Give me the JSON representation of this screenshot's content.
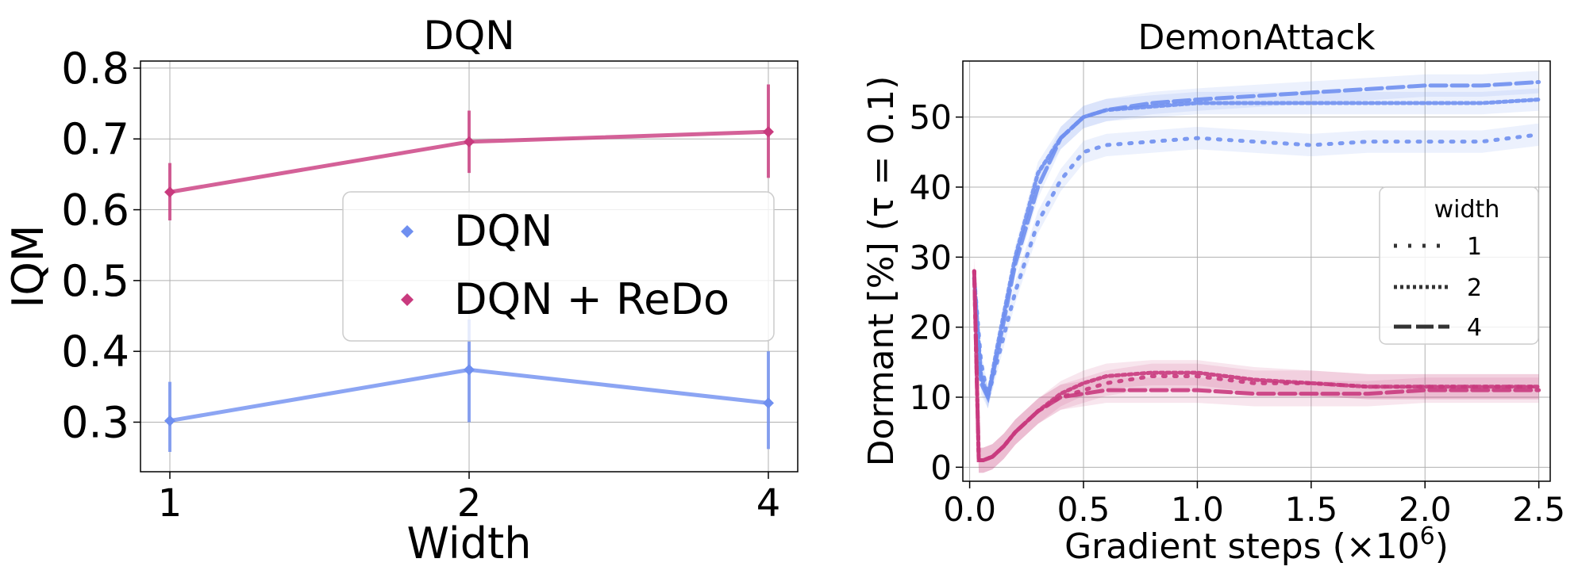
{
  "colors": {
    "dqn": "#6f8ff0",
    "redo": "#c93a7e"
  },
  "chart_data": [
    {
      "type": "line",
      "title": "DQN",
      "xlabel": "Width",
      "ylabel": "IQM",
      "categories": [
        "1",
        "2",
        "4"
      ],
      "ylim": [
        0.23,
        0.81
      ],
      "yticks": [
        "0.3",
        "0.4",
        "0.5",
        "0.6",
        "0.7",
        "0.8"
      ],
      "grid": true,
      "legend_position": "center-right",
      "series": [
        {
          "name": "DQN",
          "color": "#6f8ff0",
          "values": [
            0.302,
            0.374,
            0.327
          ],
          "err_low": [
            0.258,
            0.3,
            0.262
          ],
          "err_high": [
            0.357,
            0.445,
            0.4
          ]
        },
        {
          "name": "DQN + ReDo",
          "color": "#c93a7e",
          "values": [
            0.625,
            0.696,
            0.71
          ],
          "err_low": [
            0.585,
            0.652,
            0.645
          ],
          "err_high": [
            0.666,
            0.74,
            0.777
          ]
        }
      ]
    },
    {
      "type": "line",
      "title": "DemonAttack",
      "xlabel": "Gradient steps (×10",
      "xlabel_exponent": "6",
      "xlabel_suffix": ")",
      "ylabel": "Dormant [%] (τ = 0.1)",
      "xlim": [
        -0.03,
        2.55
      ],
      "ylim": [
        -2,
        58
      ],
      "xticks": [
        "0.0",
        "0.5",
        "1.0",
        "1.5",
        "2.0",
        "2.5"
      ],
      "yticks": [
        "0",
        "10",
        "20",
        "30",
        "40",
        "50"
      ],
      "grid": true,
      "legend_position": "center-right",
      "legend_title": "width",
      "legend_entries": [
        {
          "label": "1",
          "style": "dotted"
        },
        {
          "label": "2",
          "style": "fine-dotted"
        },
        {
          "label": "4",
          "style": "dashed"
        }
      ],
      "series": [
        {
          "group": "DQN",
          "width": "1",
          "color": "#6f8ff0",
          "x": [
            0.02,
            0.05,
            0.08,
            0.12,
            0.2,
            0.3,
            0.4,
            0.5,
            0.6,
            0.8,
            1.0,
            1.25,
            1.5,
            1.75,
            2.0,
            2.25,
            2.5
          ],
          "y": [
            27,
            15,
            10,
            15,
            25,
            35,
            41,
            45,
            46,
            46.5,
            47,
            46.5,
            46,
            46.5,
            46.5,
            46.5,
            47.5
          ]
        },
        {
          "group": "DQN",
          "width": "2",
          "color": "#6f8ff0",
          "x": [
            0.02,
            0.05,
            0.08,
            0.12,
            0.2,
            0.3,
            0.4,
            0.5,
            0.6,
            0.8,
            1.0,
            1.25,
            1.5,
            1.75,
            2.0,
            2.25,
            2.5
          ],
          "y": [
            27,
            13,
            10,
            17,
            30,
            42,
            47,
            50,
            51,
            51.5,
            52,
            52,
            52,
            52,
            52,
            52,
            52.5
          ]
        },
        {
          "group": "DQN",
          "width": "4",
          "color": "#6f8ff0",
          "x": [
            0.02,
            0.05,
            0.08,
            0.12,
            0.2,
            0.3,
            0.4,
            0.5,
            0.6,
            0.8,
            1.0,
            1.25,
            1.5,
            1.75,
            2.0,
            2.25,
            2.5
          ],
          "y": [
            27,
            12,
            10,
            16,
            29,
            40,
            47,
            50,
            51,
            52,
            52.5,
            53,
            53.5,
            54,
            54.5,
            54.5,
            55
          ]
        },
        {
          "group": "DQN + ReDo",
          "width": "1",
          "color": "#c93a7e",
          "x": [
            0.02,
            0.04,
            0.06,
            0.1,
            0.15,
            0.2,
            0.3,
            0.4,
            0.5,
            0.6,
            0.8,
            1.0,
            1.25,
            1.5,
            1.75,
            2.0,
            2.25,
            2.5
          ],
          "y": [
            28,
            1,
            1,
            1.5,
            3,
            5,
            8,
            10,
            11,
            12,
            13,
            13,
            12,
            12,
            11.5,
            11.5,
            11.5,
            11.5
          ]
        },
        {
          "group": "DQN + ReDo",
          "width": "2",
          "color": "#c93a7e",
          "x": [
            0.02,
            0.04,
            0.06,
            0.1,
            0.15,
            0.2,
            0.3,
            0.4,
            0.5,
            0.6,
            0.8,
            1.0,
            1.25,
            1.5,
            1.75,
            2.0,
            2.25,
            2.5
          ],
          "y": [
            28,
            1,
            1,
            1.5,
            3,
            5,
            8,
            10.5,
            12,
            13,
            13.5,
            13.5,
            12.5,
            12,
            11.5,
            11.5,
            11.5,
            11.5
          ]
        },
        {
          "group": "DQN + ReDo",
          "width": "4",
          "color": "#c93a7e",
          "x": [
            0.02,
            0.04,
            0.06,
            0.1,
            0.15,
            0.2,
            0.3,
            0.4,
            0.5,
            0.6,
            0.8,
            1.0,
            1.25,
            1.5,
            1.75,
            2.0,
            2.25,
            2.5
          ],
          "y": [
            28,
            1,
            1,
            1.5,
            3,
            5,
            8,
            10,
            10.5,
            11,
            11,
            11,
            10.5,
            10.5,
            10.5,
            11,
            11,
            11
          ]
        }
      ]
    }
  ]
}
